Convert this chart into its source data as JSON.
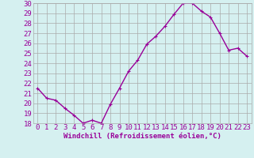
{
  "x": [
    0,
    1,
    2,
    3,
    4,
    5,
    6,
    7,
    8,
    9,
    10,
    11,
    12,
    13,
    14,
    15,
    16,
    17,
    18,
    19,
    20,
    21,
    22,
    23
  ],
  "y": [
    21.5,
    20.5,
    20.3,
    19.5,
    18.8,
    18.0,
    18.3,
    18.0,
    19.9,
    21.5,
    23.2,
    24.3,
    25.9,
    26.7,
    27.7,
    28.9,
    30.0,
    30.0,
    29.2,
    28.6,
    27.0,
    25.3,
    25.5,
    24.7
  ],
  "line_color": "#990099",
  "marker": "+",
  "marker_size": 3,
  "bg_color": "#d5f0f0",
  "grid_color": "#aaaaaa",
  "xlabel": "Windchill (Refroidissement éolien,°C)",
  "xlabel_color": "#990099",
  "tick_color": "#990099",
  "xlim": [
    -0.5,
    23.5
  ],
  "ylim": [
    18,
    30
  ],
  "yticks": [
    18,
    19,
    20,
    21,
    22,
    23,
    24,
    25,
    26,
    27,
    28,
    29,
    30
  ],
  "xticks": [
    0,
    1,
    2,
    3,
    4,
    5,
    6,
    7,
    8,
    9,
    10,
    11,
    12,
    13,
    14,
    15,
    16,
    17,
    18,
    19,
    20,
    21,
    22,
    23
  ],
  "line_width": 1.0,
  "font_size": 6.5
}
